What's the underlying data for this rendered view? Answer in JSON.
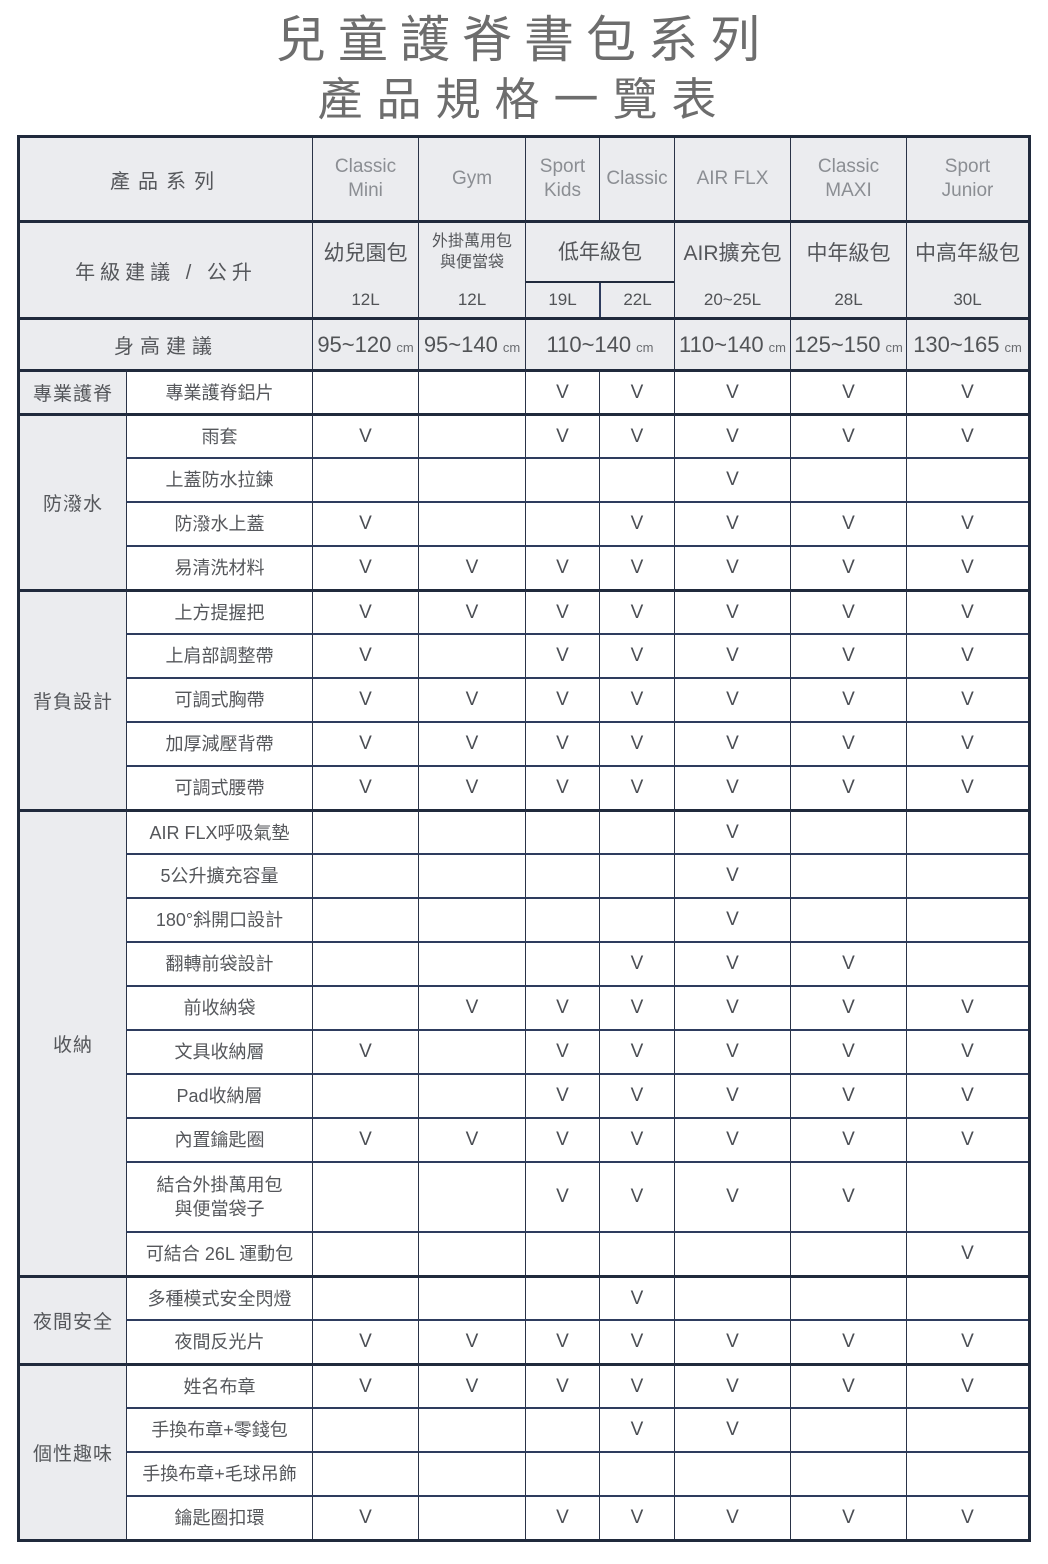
{
  "title": {
    "line1": "兒童護脊書包系列",
    "line2": "產品規格一覽表"
  },
  "check_mark": "V",
  "colors": {
    "border_dark": "#202a3c",
    "border_row": "#2e3c5e",
    "header_bg": "#ebecef",
    "text": "#55575b",
    "product_text": "#8b8e93",
    "title_text": "#6d6d6d"
  },
  "table": {
    "series_header": "產品系列",
    "grade_header": "年級建議 / 公升",
    "height_header": "身高建議",
    "products": [
      "Classic\nMini",
      "Gym",
      "Sport\nKids",
      "Classic",
      "AIR FLX",
      "Classic\nMAXI",
      "Sport\nJunior"
    ],
    "grade_cells": [
      {
        "name": "幼兒園包",
        "liters": [
          "12L"
        ],
        "span": 1
      },
      {
        "name": "外掛萬用包\n與便當袋",
        "liters": [
          "12L"
        ],
        "span": 1
      },
      {
        "name": "低年級包",
        "liters": [
          "19L",
          "22L"
        ],
        "span": 2
      },
      {
        "name": "AIR擴充包",
        "liters": [
          "20~25L"
        ],
        "span": 1
      },
      {
        "name": "中年級包",
        "liters": [
          "28L"
        ],
        "span": 1
      },
      {
        "name": "中高年級包",
        "liters": [
          "30L"
        ],
        "span": 1
      }
    ],
    "height_cells": [
      {
        "value": "95~120",
        "unit": "cm",
        "span": 1
      },
      {
        "value": "95~140",
        "unit": "cm",
        "span": 1
      },
      {
        "value": "110~140",
        "unit": "cm",
        "span": 2
      },
      {
        "value": "110~140",
        "unit": "cm",
        "span": 1
      },
      {
        "value": "125~150",
        "unit": "cm",
        "span": 1
      },
      {
        "value": "130~165",
        "unit": "cm",
        "span": 1
      }
    ],
    "groups": [
      {
        "label": "專業護脊",
        "rows": [
          {
            "feature": "專業護脊鋁片",
            "checks": [
              0,
              0,
              1,
              1,
              1,
              1,
              1
            ]
          }
        ]
      },
      {
        "label": "防潑水",
        "rows": [
          {
            "feature": "雨套",
            "checks": [
              1,
              0,
              1,
              1,
              1,
              1,
              1
            ]
          },
          {
            "feature": "上蓋防水拉鍊",
            "checks": [
              0,
              0,
              0,
              0,
              1,
              0,
              0
            ]
          },
          {
            "feature": "防潑水上蓋",
            "checks": [
              1,
              0,
              0,
              1,
              1,
              1,
              1
            ]
          },
          {
            "feature": "易清洗材料",
            "checks": [
              1,
              1,
              1,
              1,
              1,
              1,
              1
            ]
          }
        ]
      },
      {
        "label": "背負設計",
        "rows": [
          {
            "feature": "上方提握把",
            "checks": [
              1,
              1,
              1,
              1,
              1,
              1,
              1
            ]
          },
          {
            "feature": "上肩部調整帶",
            "checks": [
              1,
              0,
              1,
              1,
              1,
              1,
              1
            ]
          },
          {
            "feature": "可調式胸帶",
            "checks": [
              1,
              1,
              1,
              1,
              1,
              1,
              1
            ]
          },
          {
            "feature": "加厚減壓背帶",
            "checks": [
              1,
              1,
              1,
              1,
              1,
              1,
              1
            ]
          },
          {
            "feature": "可調式腰帶",
            "checks": [
              1,
              1,
              1,
              1,
              1,
              1,
              1
            ]
          }
        ]
      },
      {
        "label": "收納",
        "rows": [
          {
            "feature": "AIR FLX呼吸氣墊",
            "checks": [
              0,
              0,
              0,
              0,
              1,
              0,
              0
            ]
          },
          {
            "feature": "5公升擴充容量",
            "checks": [
              0,
              0,
              0,
              0,
              1,
              0,
              0
            ]
          },
          {
            "feature": "180°斜開口設計",
            "checks": [
              0,
              0,
              0,
              0,
              1,
              0,
              0
            ]
          },
          {
            "feature": "翻轉前袋設計",
            "checks": [
              0,
              0,
              0,
              1,
              1,
              1,
              0
            ]
          },
          {
            "feature": "前收納袋",
            "checks": [
              0,
              1,
              1,
              1,
              1,
              1,
              1
            ]
          },
          {
            "feature": "文具收納層",
            "checks": [
              1,
              0,
              1,
              1,
              1,
              1,
              1
            ]
          },
          {
            "feature": "Pad收納層",
            "checks": [
              0,
              0,
              1,
              1,
              1,
              1,
              1
            ]
          },
          {
            "feature": "內置鑰匙圈",
            "checks": [
              1,
              1,
              1,
              1,
              1,
              1,
              1
            ]
          },
          {
            "feature": "結合外掛萬用包\n與便當袋子",
            "checks": [
              0,
              0,
              1,
              1,
              1,
              1,
              0
            ],
            "tall": true
          },
          {
            "feature": "可結合 26L 運動包",
            "checks": [
              0,
              0,
              0,
              0,
              0,
              0,
              1
            ]
          }
        ]
      },
      {
        "label": "夜間安全",
        "rows": [
          {
            "feature": "多種模式安全閃燈",
            "checks": [
              0,
              0,
              0,
              1,
              0,
              0,
              0
            ]
          },
          {
            "feature": "夜間反光片",
            "checks": [
              1,
              1,
              1,
              1,
              1,
              1,
              1
            ]
          }
        ]
      },
      {
        "label": "個性趣味",
        "rows": [
          {
            "feature": "姓名布章",
            "checks": [
              1,
              1,
              1,
              1,
              1,
              1,
              1
            ]
          },
          {
            "feature": "手換布章+零錢包",
            "checks": [
              0,
              0,
              0,
              1,
              1,
              0,
              0
            ]
          },
          {
            "feature": "手換布章+毛球吊飾",
            "checks": [
              0,
              0,
              0,
              0,
              0,
              0,
              0
            ]
          },
          {
            "feature": "鑰匙圈扣環",
            "checks": [
              1,
              0,
              1,
              1,
              1,
              1,
              1
            ]
          }
        ]
      }
    ]
  }
}
